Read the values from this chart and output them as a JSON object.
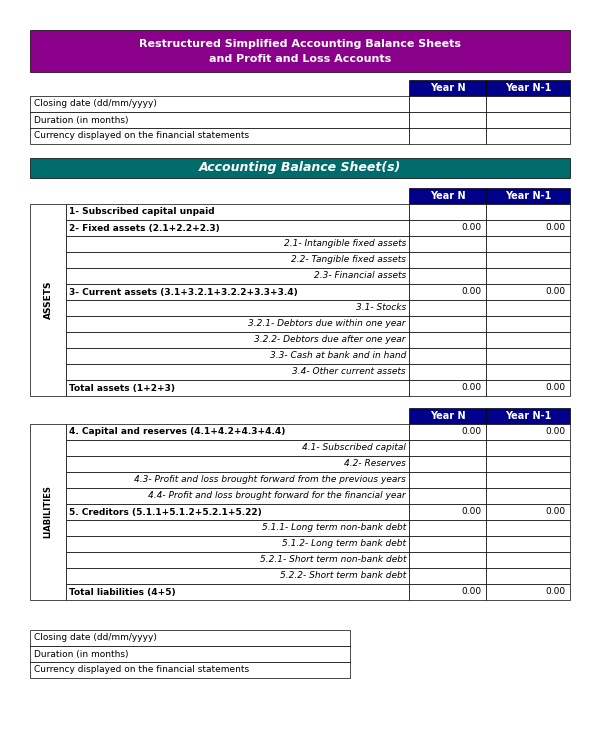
{
  "title_line1": "Restructured Simplified Accounting Balance Sheets",
  "title_line2": "and Profit and Loss Accounts",
  "title_bg": "#8B008B",
  "title_color": "#FFFFFF",
  "section2_title": "Accounting Balance Sheet(s)",
  "section2_bg": "#006B6B",
  "section2_color": "#FFFFFF",
  "header_bg": "#00008B",
  "header_color": "#FFFFFF",
  "top_info_rows": [
    "Closing date (dd/mm/yyyy)",
    "Duration (in months)",
    "Currency displayed on the financial statements"
  ],
  "assets_label": "ASSETS",
  "liabilities_label": "LIABILITIES",
  "assets_rows": [
    {
      "label": "1- Subscribed capital unpaid",
      "bold": true,
      "italic": false,
      "indent": false,
      "yearN": "",
      "yearN1": ""
    },
    {
      "label": "2- Fixed assets (2.1+2.2+2.3)",
      "bold": true,
      "italic": false,
      "indent": false,
      "yearN": "0.00",
      "yearN1": "0.00"
    },
    {
      "label": "2.1- Intangible fixed assets",
      "bold": false,
      "italic": true,
      "indent": true,
      "yearN": "",
      "yearN1": ""
    },
    {
      "label": "2.2- Tangible fixed assets",
      "bold": false,
      "italic": true,
      "indent": true,
      "yearN": "",
      "yearN1": ""
    },
    {
      "label": "2.3- Financial assets",
      "bold": false,
      "italic": true,
      "indent": true,
      "yearN": "",
      "yearN1": ""
    },
    {
      "label": "3- Current assets (3.1+3.2.1+3.2.2+3.3+3.4)",
      "bold": true,
      "italic": false,
      "indent": false,
      "yearN": "0.00",
      "yearN1": "0.00"
    },
    {
      "label": "3.1- Stocks",
      "bold": false,
      "italic": true,
      "indent": true,
      "yearN": "",
      "yearN1": ""
    },
    {
      "label": "3.2.1- Debtors due within one year",
      "bold": false,
      "italic": true,
      "indent": true,
      "yearN": "",
      "yearN1": ""
    },
    {
      "label": "3.2.2- Debtors due after one year",
      "bold": false,
      "italic": true,
      "indent": true,
      "yearN": "",
      "yearN1": ""
    },
    {
      "label": "3.3- Cash at bank and in hand",
      "bold": false,
      "italic": true,
      "indent": true,
      "yearN": "",
      "yearN1": ""
    },
    {
      "label": "3.4- Other current assets",
      "bold": false,
      "italic": true,
      "indent": true,
      "yearN": "",
      "yearN1": ""
    },
    {
      "label": "Total assets (1+2+3)",
      "bold": true,
      "italic": false,
      "indent": false,
      "yearN": "0.00",
      "yearN1": "0.00"
    }
  ],
  "liabilities_rows": [
    {
      "label": "4. Capital and reserves (4.1+4.2+4.3+4.4)",
      "bold": true,
      "italic": false,
      "indent": false,
      "yearN": "0.00",
      "yearN1": "0.00"
    },
    {
      "label": "4.1- Subscribed capital",
      "bold": false,
      "italic": true,
      "indent": true,
      "yearN": "",
      "yearN1": ""
    },
    {
      "label": "4.2- Reserves",
      "bold": false,
      "italic": true,
      "indent": true,
      "yearN": "",
      "yearN1": ""
    },
    {
      "label": "4.3- Profit and loss brought forward from the previous years",
      "bold": false,
      "italic": true,
      "indent": true,
      "yearN": "",
      "yearN1": ""
    },
    {
      "label": "4.4- Profit and loss brought forward for the financial year",
      "bold": false,
      "italic": true,
      "indent": true,
      "yearN": "",
      "yearN1": ""
    },
    {
      "label": "5. Creditors (5.1.1+5.1.2+5.2.1+5.22)",
      "bold": true,
      "italic": false,
      "indent": false,
      "yearN": "0.00",
      "yearN1": "0.00"
    },
    {
      "label": "5.1.1- Long term non-bank debt",
      "bold": false,
      "italic": true,
      "indent": true,
      "yearN": "",
      "yearN1": ""
    },
    {
      "label": "5.1.2- Long term bank debt",
      "bold": false,
      "italic": true,
      "indent": true,
      "yearN": "",
      "yearN1": ""
    },
    {
      "label": "5.2.1- Short term non-bank debt",
      "bold": false,
      "italic": true,
      "indent": true,
      "yearN": "",
      "yearN1": ""
    },
    {
      "label": "5.2.2- Short term bank debt",
      "bold": false,
      "italic": true,
      "indent": true,
      "yearN": "",
      "yearN1": ""
    },
    {
      "label": "Total liabilities (4+5)",
      "bold": true,
      "italic": false,
      "indent": false,
      "yearN": "0.00",
      "yearN1": "0.00"
    }
  ],
  "bottom_info_rows": [
    "Closing date (dd/mm/yyyy)",
    "Duration (in months)",
    "Currency displayed on the financial statements"
  ],
  "border_color": "#000000"
}
